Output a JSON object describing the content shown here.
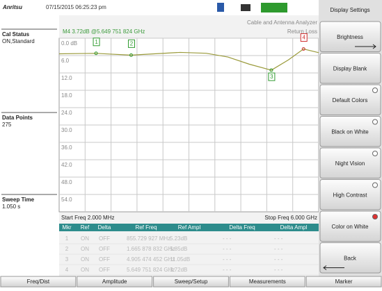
{
  "header": {
    "logo": "Anritsu",
    "datetime": "07/15/2015 06:25:23 pm"
  },
  "status": [
    {
      "label": "Cal Status",
      "value": "ON,Standard"
    },
    {
      "label": "Data Points",
      "value": "275"
    },
    {
      "label": "Sweep Time",
      "value": "1.050 s"
    }
  ],
  "chart_data": {
    "type": "line",
    "marker_readout": "M4 3.72dB @5.649 751 824 GHz",
    "mode": "Cable and Antenna Analyzer",
    "measurement": "Return Loss",
    "start_label": "Start Freq 2.000 MHz",
    "stop_label": "Stop Freq 6.000 GHz",
    "ylim": [
      0,
      60
    ],
    "yticks": [
      {
        "value": 0,
        "label": "0.0 dB"
      },
      {
        "value": 6,
        "label": "6.0"
      },
      {
        "value": 12,
        "label": "12.0"
      },
      {
        "value": 18,
        "label": "18.0"
      },
      {
        "value": 24,
        "label": "24.0"
      },
      {
        "value": 30,
        "label": "30.0"
      },
      {
        "value": 36,
        "label": "36.0"
      },
      {
        "value": 42,
        "label": "42.0"
      },
      {
        "value": 48,
        "label": "48.0"
      },
      {
        "value": 54,
        "label": "54.0"
      }
    ],
    "xlim": [
      0.002,
      6
    ],
    "x": [
      0.002,
      0.5,
      0.855,
      1.2,
      1.666,
      2.2,
      2.8,
      3.4,
      3.9,
      4.4,
      4.905,
      5.3,
      5.65,
      6.0
    ],
    "series": [
      {
        "color": "#9a9a3a",
        "values": [
          5.4,
          5.3,
          5.23,
          5.5,
          5.85,
          5.4,
          4.9,
          5.2,
          6.5,
          9.0,
          11.05,
          7.5,
          3.72,
          5.0
        ]
      }
    ],
    "markers": [
      {
        "label": "1",
        "x": 0.855,
        "value": 5.23,
        "color": "#2e9a2e"
      },
      {
        "label": "2",
        "x": 1.666,
        "value": 5.85,
        "color": "#2e9a2e"
      },
      {
        "label": "3",
        "x": 4.905,
        "value": 11.05,
        "color": "#2e9a2e"
      },
      {
        "label": "4",
        "x": 5.65,
        "value": 3.72,
        "color": "#d03030"
      }
    ]
  },
  "marker_table": {
    "columns": [
      "Mkr",
      "Ref",
      "Delta",
      "Ref Freq",
      "Ref Ampl",
      "Delta Freq",
      "Delta Ampl"
    ],
    "rows": [
      [
        "1",
        "ON",
        "OFF",
        "855.729 927 MHz",
        "5.23dB",
        "- - -",
        "- - -"
      ],
      [
        "2",
        "ON",
        "OFF",
        "1.665 878 832 GHz",
        "5.85dB",
        "- - -",
        "- - -"
      ],
      [
        "3",
        "ON",
        "OFF",
        "4.905 474 452 GHz",
        "11.05dB",
        "- - -",
        "- - -"
      ],
      [
        "4",
        "ON",
        "OFF",
        "5.649 751 824 GHz",
        "3.72dB",
        "- - -",
        "- - -"
      ]
    ]
  },
  "menu": {
    "title": "Display Settings",
    "buttons": [
      "Brightness",
      "Display Blank",
      "Default Colors",
      "Black on White",
      "Night Vision",
      "High Contrast",
      "Color on White",
      "Back"
    ]
  },
  "tabs": [
    "Freq/Dist",
    "Amplitude",
    "Sweep/Setup",
    "Measurements",
    "Marker"
  ]
}
